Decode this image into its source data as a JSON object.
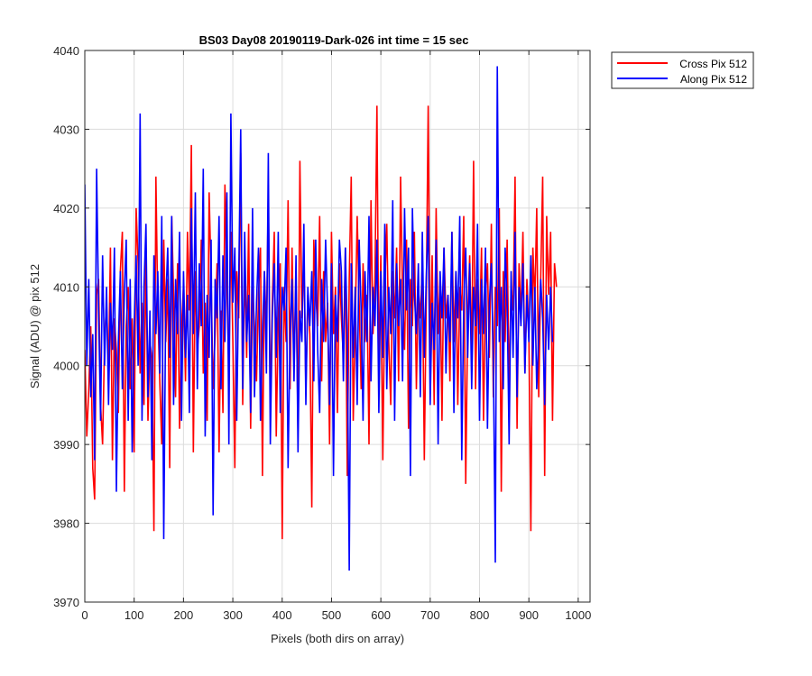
{
  "chart_data": {
    "type": "line",
    "title": "BS03 Day08 20190119-Dark-026 int time = 15 sec",
    "xlabel": "Pixels (both dirs on array)",
    "ylabel": "Signal (ADU) @ pix 512",
    "xlim": [
      0,
      1024
    ],
    "ylim": [
      3970,
      4040
    ],
    "xticks": [
      0,
      100,
      200,
      300,
      400,
      500,
      600,
      700,
      800,
      900,
      1000
    ],
    "yticks": [
      3970,
      3980,
      3990,
      4000,
      4010,
      4020,
      4030,
      4040
    ],
    "grid": true,
    "legend_position": "outside-top-right",
    "series": [
      {
        "name": "Cross Pix 512",
        "color": "#ff0000",
        "x_start": 0,
        "x_step": 4,
        "values": [
          4002,
          3991,
          3997,
          4005,
          3987,
          3983,
          4009,
          4011,
          3995,
          3990,
          4003,
          4008,
          3999,
          4015,
          3988,
          4006,
          4002,
          3994,
          4012,
          4017,
          3984,
          4005,
          4010,
          3997,
          4006,
          3989,
          4020,
          4013,
          3999,
          4008,
          3995,
          4014,
          3993,
          4003,
          4001,
          3979,
          4024,
          4007,
          3998,
          3990,
          4016,
          4003,
          4011,
          3987,
          4019,
          4009,
          3996,
          4013,
          3992,
          4005,
          4010,
          3998,
          4017,
          4007,
          4028,
          3989,
          4012,
          4002,
          4005,
          4016,
          3999,
          4008,
          3993,
          4022,
          4011,
          3997,
          4004,
          4013,
          3989,
          4007,
          3994,
          4023,
          4010,
          3999,
          4017,
          4003,
          3987,
          4012,
          4006,
          4027,
          3995,
          4013,
          4001,
          4018,
          3992,
          4010,
          4005,
          3998,
          4009,
          4015,
          3986,
          4012,
          4004,
          4022,
          3995,
          4008,
          4017,
          3991,
          4006,
          4013,
          3978,
          4010,
          4003,
          4021,
          3997,
          4015,
          4000,
          4011,
          3992,
          4026,
          4006,
          4014,
          3997,
          4009,
          4004,
          3982,
          4016,
          4009,
          4005,
          4019,
          3998,
          4012,
          4003,
          4008,
          3990,
          4017,
          4004,
          4010,
          3994,
          4013,
          4006,
          4001,
          4015,
          3986,
          4011,
          4024,
          3993,
          4005,
          4019,
          4008,
          3997,
          4013,
          4003,
          4009,
          3990,
          4021,
          4004,
          4011,
          4033,
          3999,
          4014,
          3988,
          4010,
          4018,
          4003,
          3995,
          4012,
          4006,
          4015,
          3998,
          4024,
          4009,
          4002,
          4016,
          3992,
          4011,
          4005,
          4017,
          3997,
          4010,
          4006,
          4013,
          3988,
          4008,
          4033,
          4001,
          4014,
          3995,
          4020,
          4004,
          4011,
          3993,
          4015,
          4006,
          4009,
          3998,
          4017,
          4003,
          4012,
          3995,
          4010,
          4007,
          4019,
          3985,
          4006,
          4014,
          4000,
          4026,
          3997,
          4011,
          4004,
          4015,
          3993,
          4009,
          4013,
          4001,
          4018,
          3996,
          4010,
          4005,
          4020,
          3984,
          4012,
          4003,
          4016,
          3997,
          4010,
          4007,
          4024,
          3992,
          4013,
          4006,
          4017,
          3999,
          4011,
          4004,
          3979,
          4015,
          4008,
          4020,
          3996,
          4011,
          4024,
          3986,
          4019,
          4009,
          4017,
          3993,
          4013,
          4010
        ]
      },
      {
        "name": "Along Pix 512",
        "color": "#0000ff",
        "x_start": 0,
        "x_step": 4,
        "values": [
          4023,
          4000,
          4011,
          3996,
          4004,
          3988,
          4025,
          4007,
          3993,
          4014,
          4000,
          4010,
          3995,
          4008,
          4002,
          4015,
          3984,
          4003,
          4012,
          3997,
          4009,
          4016,
          3993,
          4011,
          3989,
          4005,
          4014,
          4000,
          4032,
          3993,
          4010,
          4018,
          3996,
          4007,
          3988,
          4014,
          4004,
          4012,
          3999,
          4019,
          3978,
          4008,
          4015,
          4001,
          4019,
          3995,
          4011,
          4004,
          4017,
          3993,
          4012,
          4001,
          4009,
          3994,
          4020,
          4004,
          4022,
          3997,
          4013,
          4005,
          4025,
          3991,
          4009,
          4001,
          4016,
          3981,
          4011,
          4006,
          4019,
          3997,
          4014,
          4003,
          4022,
          3990,
          4032,
          4008,
          4015,
          3993,
          4011,
          4030,
          3997,
          4017,
          4003,
          4009,
          3994,
          4020,
          3996,
          4008,
          4015,
          3993,
          4004,
          4012,
          3999,
          4027,
          3990,
          4006,
          4013,
          4001,
          4017,
          3994,
          4010,
          4007,
          4015,
          3987,
          4004,
          4011,
          3998,
          4014,
          3989,
          4007,
          4003,
          4018,
          3995,
          4010,
          4005,
          4012,
          3998,
          4016,
          4002,
          3994,
          4011,
          4003,
          4016,
          4007,
          3995,
          4013,
          3986,
          4009,
          4003,
          4016,
          4012,
          3998,
          4015,
          4004,
          3974,
          4013,
          4001,
          4010,
          3995,
          4016,
          4007,
          3993,
          4012,
          4003,
          4019,
          3998,
          4010,
          4005,
          4016,
          3994,
          4012,
          4001,
          4018,
          3997,
          4010,
          4004,
          4021,
          3993,
          4013,
          4005,
          4011,
          3998,
          4020,
          4007,
          4015,
          3986,
          4020,
          4009,
          4004,
          4013,
          3996,
          4017,
          4001,
          4011,
          4019,
          3995,
          4008,
          4002,
          4016,
          3990,
          4012,
          4006,
          4015,
          3999,
          4009,
          4003,
          4017,
          3994,
          4012,
          4006,
          4019,
          3988,
          4008,
          4015,
          4001,
          4013,
          3997,
          4010,
          4005,
          4018,
          3993,
          4011,
          4004,
          4015,
          3992,
          4008,
          4013,
          4001,
          3975,
          4038,
          4003,
          4010,
          3997,
          4015,
          4008,
          3990,
          4012,
          4001,
          4017,
          3996,
          4010,
          4005,
          4013,
          3999,
          4009,
          4003,
          4014,
          4000,
          4010,
          3997,
          4004,
          4011,
          4006,
          3995,
          4009,
          4002,
          4010,
          4003
        ]
      }
    ]
  }
}
